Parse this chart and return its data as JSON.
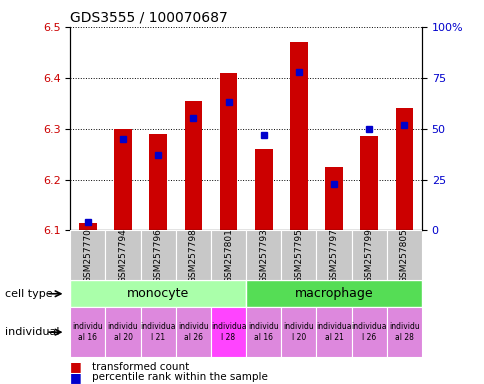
{
  "title": "GDS3555 / 100070687",
  "samples": [
    "GSM257770",
    "GSM257794",
    "GSM257796",
    "GSM257798",
    "GSM257801",
    "GSM257793",
    "GSM257795",
    "GSM257797",
    "GSM257799",
    "GSM257805"
  ],
  "transformed_counts": [
    6.115,
    6.3,
    6.29,
    6.355,
    6.41,
    6.26,
    6.47,
    6.225,
    6.285,
    6.34
  ],
  "percentile_ranks": [
    4,
    45,
    37,
    55,
    63,
    47,
    78,
    23,
    50,
    52
  ],
  "ylim_left": [
    6.1,
    6.5
  ],
  "ylim_right": [
    0,
    100
  ],
  "yticks_left": [
    6.1,
    6.2,
    6.3,
    6.4,
    6.5
  ],
  "yticks_right": [
    0,
    25,
    50,
    75,
    100
  ],
  "ytick_labels_right": [
    "0",
    "25",
    "50",
    "75",
    "100%"
  ],
  "bar_color": "#cc0000",
  "blue_color": "#0000cc",
  "bar_bottom": 6.1,
  "monocyte_color": "#aaffaa",
  "macrophage_color": "#55dd55",
  "ind_labels": [
    "individu\nal 16",
    "individu\nal 20",
    "individua\nl 21",
    "individu\nal 26",
    "individua\nl 28",
    "individu\nal 16",
    "individu\nl 20",
    "individua\nal 21",
    "individua\nl 26",
    "individu\nal 28"
  ],
  "ind_colors": [
    "#dd88dd",
    "#dd88dd",
    "#dd88dd",
    "#dd88dd",
    "#ff44ff",
    "#dd88dd",
    "#dd88dd",
    "#dd88dd",
    "#dd88dd",
    "#dd88dd"
  ],
  "tick_label_color_left": "#cc0000",
  "tick_label_color_right": "#0000cc",
  "xtick_bg_color": "#c8c8c8"
}
